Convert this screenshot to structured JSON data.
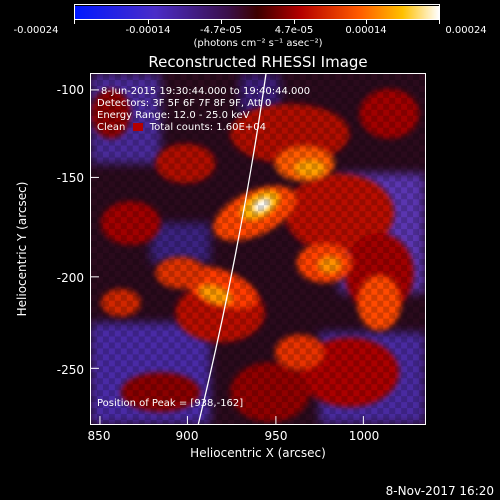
{
  "colorbar": {
    "tick_labels": [
      "-0.00024",
      "-0.00014",
      "-4.7e-05",
      "4.7e-05",
      "0.00014",
      "0.00024"
    ],
    "unit_label": "(photons cm⁻² s⁻¹ asec⁻²)",
    "colormap": "blue-purple-red-orange-yellow-white"
  },
  "plot": {
    "title": "Reconstructed RHESSI Image",
    "time_range": "8-Jun-2015 19:30:44.000 to 19:40:44.000",
    "detectors": "Detectors: 3F 5F 6F 7F 8F 9F, Att 0",
    "energy_range": "Energy Range: 12.0 - 25.0 keV",
    "algorithm": "Clean",
    "total_counts": "Total counts: 1.60E+04",
    "peak_position": "Position of Peak = [938,-162]",
    "x_axis": {
      "label": "Heliocentric X (arcsec)",
      "tick_labels": [
        "850",
        "900",
        "950",
        "1000"
      ],
      "range": [
        838,
        1028
      ]
    },
    "y_axis": {
      "label": "Heliocentric Y (arcsec)",
      "tick_labels": [
        "-100",
        "-150",
        "-200",
        "-250"
      ],
      "range": [
        -287,
        -88
      ]
    }
  },
  "footer": {
    "date": "8-Nov-2017 16:20"
  },
  "colors": {
    "background": "#000000",
    "text": "#ffffff",
    "frame": "#ffffff",
    "limb_line": "#ffffff",
    "clean_swatch": "#b40000"
  }
}
